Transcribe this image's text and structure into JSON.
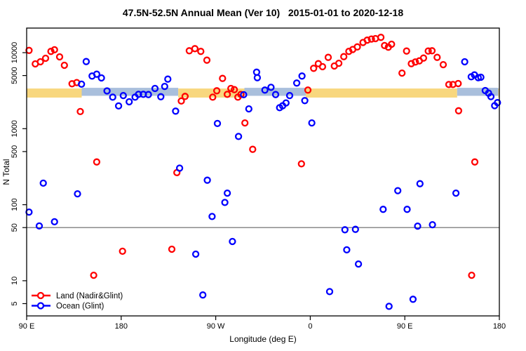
{
  "title": "47.5N-52.5N Annual Mean (Ver 10)   2015-01-01 to 2020-12-18",
  "axes": {
    "x_label": "Longitude (deg E)",
    "y_label": "N Total",
    "x_ticks": [
      {
        "v": 0,
        "label": "90 E"
      },
      {
        "v": 90,
        "label": "180"
      },
      {
        "v": 180,
        "label": "90 W"
      },
      {
        "v": 270,
        "label": "0"
      },
      {
        "v": 360,
        "label": "90 E"
      },
      {
        "v": 450,
        "label": "180"
      }
    ],
    "y_ticks": [
      {
        "n": 5,
        "label": "5"
      },
      {
        "n": 10,
        "label": "10"
      },
      {
        "n": 50,
        "label": "50"
      },
      {
        "n": 100,
        "label": "100"
      },
      {
        "n": 500,
        "label": "500"
      },
      {
        "n": 1000,
        "label": "1000"
      },
      {
        "n": 5000,
        "label": "5000"
      },
      {
        "n": 10000,
        "label": "10000"
      }
    ],
    "x_range_deg": [
      0,
      450
    ],
    "y_scale": "log10"
  },
  "legend": {
    "items": [
      {
        "label": "Land (Nadir&Glint)",
        "color": "#ff0000"
      },
      {
        "label": "Ocean (Glint)",
        "color": "#0000ff"
      }
    ]
  },
  "reference_line": {
    "n": 50,
    "color": "#808080"
  },
  "bands": {
    "n_low": 2620,
    "n_high": 3450,
    "land_color": "#f8d77e",
    "ocean_color": "#a9bfdc",
    "segments": [
      {
        "from": 0,
        "to": 52.4,
        "surface": "land"
      },
      {
        "from": 52.4,
        "to": 144.3,
        "surface": "ocean"
      },
      {
        "from": 144.3,
        "to": 207.3,
        "surface": "land"
      },
      {
        "from": 207.3,
        "to": 265.7,
        "surface": "ocean"
      },
      {
        "from": 265.7,
        "to": 409.8,
        "surface": "land"
      },
      {
        "from": 409.8,
        "to": 449,
        "surface": "ocean"
      },
      {
        "from": 449,
        "to": 450,
        "surface": "land"
      }
    ]
  },
  "chart_data": {
    "type": "scatter",
    "title": "47.5N-52.5N Annual Mean (Ver 10)   2015-01-01 to 2020-12-18",
    "xlabel": "Longitude (deg E)",
    "ylabel": "N Total",
    "x_axis_note": "degrees eastward from 90E (axis wraps: 90E,180,90W,0,90E,180)",
    "ylim": [
      3.5,
      21000
    ],
    "grid": false,
    "legend_position": "bottom-left",
    "series": [
      {
        "name": "Land (Nadir&Glint)",
        "color": "#ff0000",
        "points": [
          [
            2.3,
            10700
          ],
          [
            8.2,
            7110
          ],
          [
            13.1,
            7590
          ],
          [
            18,
            8440
          ],
          [
            23.1,
            10400
          ],
          [
            26.5,
            10900
          ],
          [
            31.4,
            8800
          ],
          [
            35.9,
            6820
          ],
          [
            43.2,
            3900
          ],
          [
            47.7,
            4040
          ],
          [
            51.1,
            1680
          ],
          [
            63.8,
            11.8
          ],
          [
            66.7,
            365
          ],
          [
            91.3,
            24.4
          ],
          [
            138.2,
            26
          ],
          [
            143,
            264
          ],
          [
            147.2,
            2310
          ],
          [
            150.8,
            2660
          ],
          [
            154.8,
            10600
          ],
          [
            160.2,
            11300
          ],
          [
            165.8,
            10400
          ],
          [
            171.6,
            7970
          ],
          [
            177.1,
            2600
          ],
          [
            181,
            3150
          ],
          [
            186.5,
            4580
          ],
          [
            191,
            2830
          ],
          [
            194.4,
            3380
          ],
          [
            197.7,
            3260
          ],
          [
            201.1,
            2600
          ],
          [
            204,
            2820
          ],
          [
            207.8,
            1190
          ],
          [
            215.2,
            535
          ],
          [
            261.6,
            345
          ],
          [
            267.7,
            3220
          ],
          [
            273.2,
            6220
          ],
          [
            277.7,
            7160
          ],
          [
            281.7,
            6530
          ],
          [
            287.1,
            8670
          ],
          [
            292.9,
            6670
          ],
          [
            297.2,
            7260
          ],
          [
            301.9,
            8850
          ],
          [
            306.7,
            10400
          ],
          [
            310.4,
            11000
          ],
          [
            314.8,
            11900
          ],
          [
            320.2,
            13600
          ],
          [
            324.2,
            14600
          ],
          [
            328.2,
            15100
          ],
          [
            332,
            15300
          ],
          [
            337.2,
            15900
          ],
          [
            340.7,
            12400
          ],
          [
            344.3,
            11800
          ],
          [
            347.4,
            12900
          ],
          [
            357.3,
            5390
          ],
          [
            361.7,
            10500
          ],
          [
            366.2,
            7160
          ],
          [
            370,
            7530
          ],
          [
            373.8,
            7800
          ],
          [
            377.8,
            8490
          ],
          [
            382.3,
            10500
          ],
          [
            385.9,
            10600
          ],
          [
            390.8,
            8670
          ],
          [
            396.6,
            6950
          ],
          [
            401.9,
            3810
          ],
          [
            405.8,
            3810
          ],
          [
            410.8,
            3920
          ],
          [
            411.2,
            1720
          ],
          [
            423.6,
            11.8
          ],
          [
            426.6,
            365
          ]
        ]
      },
      {
        "name": "Ocean (Glint)",
        "color": "#0000ff",
        "points": [
          [
            2.3,
            80
          ],
          [
            12,
            52.5
          ],
          [
            15.8,
            192
          ],
          [
            26.5,
            59.6
          ],
          [
            48.4,
            139
          ],
          [
            52.2,
            3850
          ],
          [
            56.7,
            7640
          ],
          [
            62.3,
            4930
          ],
          [
            66.7,
            5210
          ],
          [
            71.2,
            4650
          ],
          [
            76.5,
            3140
          ],
          [
            81.9,
            2600
          ],
          [
            87.5,
            1990
          ],
          [
            92,
            2730
          ],
          [
            97.6,
            2260
          ],
          [
            103.2,
            2600
          ],
          [
            106.5,
            2830
          ],
          [
            111,
            2830
          ],
          [
            115.9,
            2810
          ],
          [
            122.2,
            3380
          ],
          [
            127.7,
            2630
          ],
          [
            131.4,
            3600
          ],
          [
            134.4,
            4490
          ],
          [
            141.8,
            1700
          ],
          [
            145.6,
            303
          ],
          [
            161,
            22.4
          ],
          [
            167.7,
            6.5
          ],
          [
            172,
            210
          ],
          [
            176.5,
            70
          ],
          [
            181.6,
            1170
          ],
          [
            188.7,
            107
          ],
          [
            191,
            142
          ],
          [
            195.9,
            32.8
          ],
          [
            201.7,
            790
          ],
          [
            206.6,
            2800
          ],
          [
            211.5,
            1820
          ],
          [
            218.9,
            5540
          ],
          [
            219.6,
            4680
          ],
          [
            226.8,
            3220
          ],
          [
            232.6,
            3500
          ],
          [
            237,
            2810
          ],
          [
            240.8,
            1890
          ],
          [
            243.7,
            2000
          ],
          [
            246.9,
            2180
          ],
          [
            250.4,
            2730
          ],
          [
            257.1,
            3980
          ],
          [
            262.1,
            4930
          ],
          [
            264.8,
            2340
          ],
          [
            271.5,
            1190
          ],
          [
            288.4,
            7.2
          ],
          [
            303,
            46.8
          ],
          [
            304.7,
            25.5
          ],
          [
            313,
            47.4
          ],
          [
            315.9,
            16.6
          ],
          [
            339.4,
            87
          ],
          [
            345,
            4.6
          ],
          [
            353.3,
            153
          ],
          [
            362.2,
            87
          ],
          [
            367.8,
            5.7
          ],
          [
            372.2,
            52.3
          ],
          [
            374.4,
            189
          ],
          [
            386.3,
            54.6
          ],
          [
            408.7,
            142
          ],
          [
            417,
            7590
          ],
          [
            423.2,
            4810
          ],
          [
            426.3,
            5100
          ],
          [
            429.9,
            4680
          ],
          [
            432.4,
            4750
          ],
          [
            436.6,
            3170
          ],
          [
            439.7,
            2930
          ],
          [
            442,
            2640
          ],
          [
            445.5,
            2010
          ],
          [
            448.2,
            2200
          ]
        ]
      }
    ]
  }
}
